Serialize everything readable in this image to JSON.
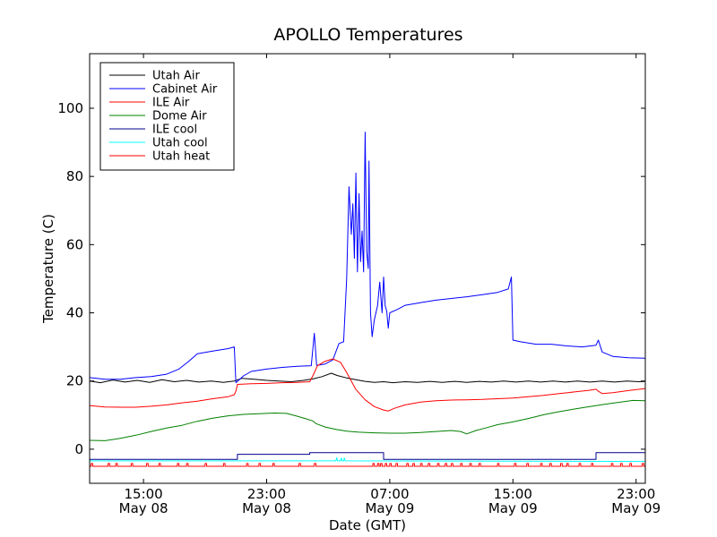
{
  "chart_data": {
    "type": "line",
    "title": "APOLLO Temperatures",
    "xlabel": "Date (GMT)",
    "ylabel": "Temperature (C)",
    "xlim": [
      11.5,
      47.6
    ],
    "ylim": [
      -10,
      116
    ],
    "x_unit": "hours since May 08 00:00 GMT",
    "yticks": [
      0,
      20,
      40,
      60,
      80,
      100
    ],
    "xticks": [
      {
        "x": 15,
        "time": "15:00",
        "date": "May 08"
      },
      {
        "x": 23,
        "time": "23:00",
        "date": "May 08"
      },
      {
        "x": 31,
        "time": "07:00",
        "date": "May 09"
      },
      {
        "x": 39,
        "time": "15:00",
        "date": "May 09"
      },
      {
        "x": 47,
        "time": "23:00",
        "date": "May 09"
      }
    ],
    "legend_position": "top-left",
    "series": [
      {
        "name": "Utah Air",
        "color": "#000000",
        "points": [
          [
            11.5,
            20.0
          ],
          [
            12.2,
            19.5
          ],
          [
            13.0,
            20.3
          ],
          [
            13.8,
            19.7
          ],
          [
            14.6,
            20.2
          ],
          [
            15.4,
            19.6
          ],
          [
            16.2,
            20.4
          ],
          [
            17.0,
            19.8
          ],
          [
            17.8,
            20.2
          ],
          [
            18.6,
            19.7
          ],
          [
            19.4,
            20.0
          ],
          [
            20.2,
            19.6
          ],
          [
            20.9,
            20.0
          ],
          [
            21.4,
            20.8
          ],
          [
            22.2,
            20.5
          ],
          [
            23.0,
            20.2
          ],
          [
            23.8,
            20.0
          ],
          [
            24.6,
            19.8
          ],
          [
            25.4,
            20.2
          ],
          [
            26.0,
            20.6
          ],
          [
            26.6,
            21.3
          ],
          [
            27.2,
            22.3
          ],
          [
            27.6,
            21.6
          ],
          [
            28.2,
            20.9
          ],
          [
            28.8,
            20.4
          ],
          [
            29.4,
            19.9
          ],
          [
            30.0,
            19.6
          ],
          [
            30.6,
            19.8
          ],
          [
            31.2,
            19.5
          ],
          [
            32.0,
            19.8
          ],
          [
            32.8,
            19.6
          ],
          [
            33.6,
            19.9
          ],
          [
            34.4,
            19.6
          ],
          [
            35.2,
            19.9
          ],
          [
            36.0,
            19.6
          ],
          [
            36.8,
            19.9
          ],
          [
            37.6,
            19.7
          ],
          [
            38.4,
            20.0
          ],
          [
            39.2,
            19.7
          ],
          [
            40.0,
            20.0
          ],
          [
            40.8,
            19.7
          ],
          [
            41.6,
            20.0
          ],
          [
            42.4,
            19.7
          ],
          [
            43.2,
            20.0
          ],
          [
            44.0,
            19.7
          ],
          [
            44.8,
            20.0
          ],
          [
            45.6,
            19.7
          ],
          [
            46.4,
            20.0
          ],
          [
            47.2,
            19.8
          ],
          [
            47.6,
            19.9
          ]
        ]
      },
      {
        "name": "Cabinet Air",
        "color": "#0000ff",
        "points": [
          [
            11.5,
            21.0
          ],
          [
            12.5,
            20.5
          ],
          [
            13.5,
            20.5
          ],
          [
            14.5,
            21.0
          ],
          [
            15.5,
            21.3
          ],
          [
            16.5,
            22.0
          ],
          [
            17.3,
            23.5
          ],
          [
            18.0,
            26.0
          ],
          [
            18.5,
            28.0
          ],
          [
            19.5,
            28.8
          ],
          [
            20.5,
            29.5
          ],
          [
            20.9,
            30.0
          ],
          [
            21.0,
            19.5
          ],
          [
            21.5,
            21.5
          ],
          [
            22.0,
            22.8
          ],
          [
            23.0,
            23.5
          ],
          [
            24.0,
            24.0
          ],
          [
            25.0,
            24.3
          ],
          [
            25.9,
            24.5
          ],
          [
            26.1,
            34.0
          ],
          [
            26.25,
            24.6
          ],
          [
            26.8,
            25.0
          ],
          [
            27.3,
            26.2
          ],
          [
            27.7,
            31.0
          ],
          [
            28.0,
            31.5
          ],
          [
            28.2,
            50.0
          ],
          [
            28.35,
            77.0
          ],
          [
            28.5,
            63.0
          ],
          [
            28.6,
            72.0
          ],
          [
            28.7,
            56.0
          ],
          [
            28.8,
            81.0
          ],
          [
            28.9,
            52.0
          ],
          [
            29.0,
            75.0
          ],
          [
            29.1,
            55.0
          ],
          [
            29.2,
            64.0
          ],
          [
            29.3,
            52.0
          ],
          [
            29.4,
            93.0
          ],
          [
            29.5,
            58.0
          ],
          [
            29.6,
            53.0
          ],
          [
            29.65,
            84.5
          ],
          [
            29.75,
            40.0
          ],
          [
            29.85,
            33.0
          ],
          [
            30.0,
            38.0
          ],
          [
            30.2,
            42.0
          ],
          [
            30.35,
            49.0
          ],
          [
            30.5,
            40.0
          ],
          [
            30.6,
            50.5
          ],
          [
            30.7,
            42.0
          ],
          [
            30.8,
            40.5
          ],
          [
            30.9,
            35.5
          ],
          [
            31.0,
            40.0
          ],
          [
            31.5,
            41.0
          ],
          [
            32.0,
            42.2
          ],
          [
            33.0,
            43.0
          ],
          [
            34.0,
            43.7
          ],
          [
            35.0,
            44.2
          ],
          [
            36.0,
            44.7
          ],
          [
            37.0,
            45.3
          ],
          [
            38.0,
            46.0
          ],
          [
            38.7,
            47.0
          ],
          [
            38.9,
            50.5
          ],
          [
            39.0,
            32.0
          ],
          [
            39.5,
            31.5
          ],
          [
            40.5,
            30.8
          ],
          [
            41.5,
            30.8
          ],
          [
            42.5,
            30.3
          ],
          [
            43.5,
            30.0
          ],
          [
            44.4,
            30.5
          ],
          [
            44.55,
            32.0
          ],
          [
            44.8,
            28.5
          ],
          [
            45.5,
            27.2
          ],
          [
            46.5,
            26.8
          ],
          [
            47.6,
            26.7
          ]
        ]
      },
      {
        "name": "ILE Air",
        "color": "#ff0000",
        "points": [
          [
            11.5,
            12.8
          ],
          [
            12.5,
            12.4
          ],
          [
            13.5,
            12.3
          ],
          [
            14.5,
            12.3
          ],
          [
            15.5,
            12.6
          ],
          [
            16.5,
            13.0
          ],
          [
            17.5,
            13.6
          ],
          [
            18.5,
            14.1
          ],
          [
            19.5,
            14.8
          ],
          [
            20.5,
            15.4
          ],
          [
            20.9,
            16.0
          ],
          [
            21.0,
            17.0
          ],
          [
            21.1,
            19.0
          ],
          [
            22.0,
            19.2
          ],
          [
            23.0,
            19.3
          ],
          [
            24.0,
            19.5
          ],
          [
            25.0,
            19.6
          ],
          [
            25.8,
            19.8
          ],
          [
            26.0,
            21.5
          ],
          [
            26.3,
            24.5
          ],
          [
            26.8,
            25.8
          ],
          [
            27.3,
            26.5
          ],
          [
            27.8,
            25.5
          ],
          [
            28.2,
            22.5
          ],
          [
            28.8,
            17.5
          ],
          [
            29.4,
            14.5
          ],
          [
            30.0,
            12.5
          ],
          [
            30.6,
            11.5
          ],
          [
            30.9,
            11.2
          ],
          [
            31.3,
            12.0
          ],
          [
            32.0,
            13.0
          ],
          [
            33.0,
            13.8
          ],
          [
            34.0,
            14.2
          ],
          [
            35.0,
            14.4
          ],
          [
            36.0,
            14.5
          ],
          [
            37.0,
            14.6
          ],
          [
            38.0,
            14.8
          ],
          [
            39.0,
            15.0
          ],
          [
            40.0,
            15.4
          ],
          [
            41.0,
            15.8
          ],
          [
            42.0,
            16.3
          ],
          [
            43.0,
            16.8
          ],
          [
            44.0,
            17.3
          ],
          [
            44.4,
            17.6
          ],
          [
            44.55,
            17.0
          ],
          [
            44.8,
            16.3
          ],
          [
            45.5,
            16.6
          ],
          [
            46.5,
            17.2
          ],
          [
            47.6,
            17.8
          ]
        ]
      },
      {
        "name": "Dome Air",
        "color": "#008000",
        "points": [
          [
            11.5,
            2.6
          ],
          [
            12.5,
            2.5
          ],
          [
            13.5,
            3.2
          ],
          [
            14.5,
            4.1
          ],
          [
            15.5,
            5.2
          ],
          [
            16.5,
            6.2
          ],
          [
            17.5,
            7.0
          ],
          [
            18.5,
            8.2
          ],
          [
            19.5,
            9.1
          ],
          [
            20.5,
            9.8
          ],
          [
            21.5,
            10.2
          ],
          [
            22.5,
            10.4
          ],
          [
            23.5,
            10.6
          ],
          [
            24.3,
            10.5
          ],
          [
            24.9,
            9.8
          ],
          [
            25.5,
            9.0
          ],
          [
            26.0,
            8.3
          ],
          [
            26.2,
            7.5
          ],
          [
            26.8,
            6.5
          ],
          [
            27.5,
            5.8
          ],
          [
            28.2,
            5.3
          ],
          [
            29.0,
            5.0
          ],
          [
            30.0,
            4.8
          ],
          [
            31.0,
            4.7
          ],
          [
            32.0,
            4.7
          ],
          [
            33.0,
            4.9
          ],
          [
            34.0,
            5.2
          ],
          [
            35.0,
            5.5
          ],
          [
            35.6,
            5.2
          ],
          [
            36.0,
            4.5
          ],
          [
            36.6,
            5.5
          ],
          [
            37.2,
            6.2
          ],
          [
            38.0,
            7.2
          ],
          [
            39.0,
            8.0
          ],
          [
            40.0,
            9.0
          ],
          [
            41.0,
            10.1
          ],
          [
            42.0,
            11.0
          ],
          [
            43.0,
            11.8
          ],
          [
            44.0,
            12.5
          ],
          [
            45.0,
            13.2
          ],
          [
            46.0,
            13.8
          ],
          [
            46.8,
            14.3
          ],
          [
            47.6,
            14.2
          ]
        ]
      },
      {
        "name": "ILE cool",
        "color": "#00008b",
        "points": [
          [
            11.5,
            -3.0
          ],
          [
            21.1,
            -3.0
          ],
          [
            21.1,
            -1.5
          ],
          [
            25.8,
            -1.5
          ],
          [
            25.8,
            -1.0
          ],
          [
            30.6,
            -1.0
          ],
          [
            30.6,
            -3.0
          ],
          [
            44.4,
            -3.0
          ],
          [
            44.4,
            -1.0
          ],
          [
            47.6,
            -1.0
          ]
        ]
      },
      {
        "name": "Utah cool",
        "color": "#00ffff",
        "points": [
          [
            11.5,
            -3.4
          ],
          [
            27.5,
            -3.4
          ],
          [
            27.55,
            -2.5
          ],
          [
            27.6,
            -3.4
          ],
          [
            27.8,
            -3.4
          ],
          [
            27.85,
            -2.6
          ],
          [
            27.9,
            -3.4
          ],
          [
            28.0,
            -3.4
          ],
          [
            28.05,
            -2.6
          ],
          [
            28.1,
            -3.4
          ],
          [
            47.6,
            -3.6
          ]
        ]
      },
      {
        "name": "Utah heat",
        "color": "#ff0000",
        "pulse": {
          "base": -5.0,
          "peak": -4.2,
          "width_hours": 0.1,
          "rows": [
            [
              11.5,
              -5.4
            ],
            [
              11.6,
              -4.2
            ],
            [
              12.4,
              -4.2
            ]
          ],
          "times": [
            11.6,
            12.7,
            13.2,
            14.2,
            15.2,
            16.0,
            17.2,
            17.8,
            19.0,
            20.2,
            21.7,
            22.5,
            23.4,
            25.1,
            26.1,
            29.9,
            30.2,
            30.4,
            30.7,
            31.0,
            31.4,
            32.1,
            32.5,
            33.0,
            33.5,
            34.1,
            34.6,
            35.0,
            35.6,
            36.2,
            36.8,
            38.0,
            39.1,
            39.9,
            40.8,
            41.4,
            42.1,
            42.5,
            43.3,
            44.1,
            45.4,
            46.0,
            46.6,
            47.4
          ]
        }
      }
    ]
  }
}
